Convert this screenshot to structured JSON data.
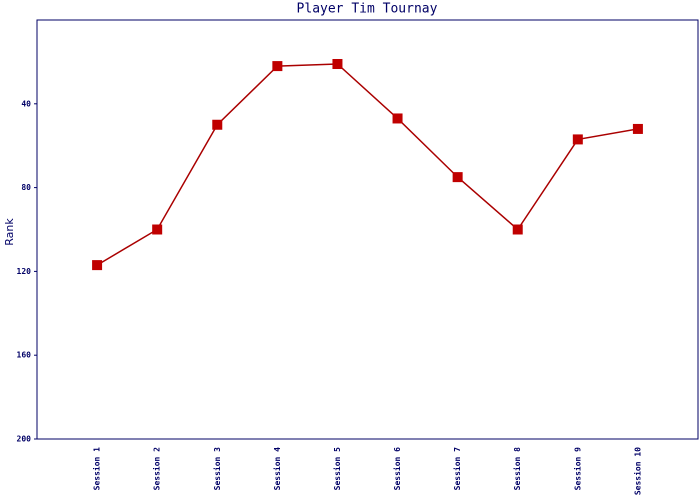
{
  "chart_data": {
    "type": "line",
    "title": "Player Tim Tournay",
    "y_label": "Rank",
    "categories": [
      "Session 1",
      "Session 2",
      "Session 3",
      "Session 4",
      "Session 5",
      "Session 6",
      "Session 7",
      "Session 8",
      "Session 9",
      "Session 10"
    ],
    "series": [
      {
        "name": "Rank",
        "color": "#aa0000",
        "values": [
          117,
          100,
          50,
          22,
          21,
          47,
          75,
          100,
          57,
          52
        ]
      }
    ],
    "ylim": [
      0,
      200
    ],
    "yticks": [
      40,
      80,
      120,
      160,
      200
    ],
    "y_inverted": true
  }
}
